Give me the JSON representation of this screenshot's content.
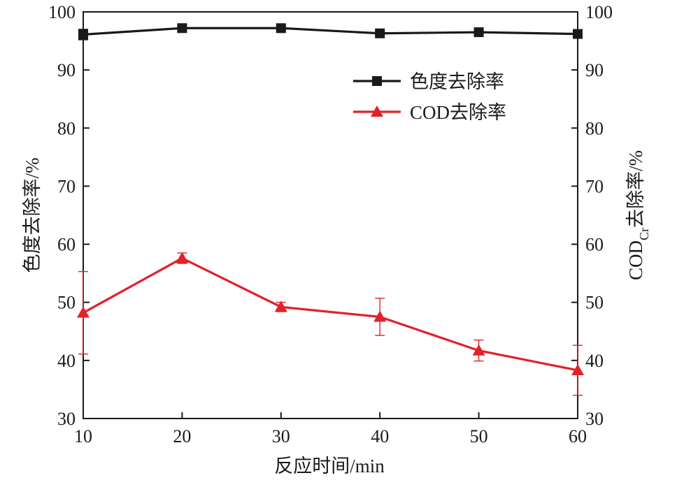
{
  "chart_data": {
    "type": "line",
    "x": [
      10,
      20,
      30,
      40,
      50,
      60
    ],
    "xlim": [
      10,
      60
    ],
    "ylim": [
      30,
      100
    ],
    "y2lim": [
      30,
      100
    ],
    "xticks": [
      "10",
      "20",
      "30",
      "40",
      "50",
      "60"
    ],
    "yticks": [
      "30",
      "40",
      "50",
      "60",
      "70",
      "80",
      "90",
      "100"
    ],
    "y2ticks": [
      "30",
      "40",
      "50",
      "60",
      "70",
      "80",
      "90",
      "100"
    ],
    "xlabel": "反应时间/min",
    "ylabel": "色度去除率/%",
    "y2label": {
      "prefix": "COD",
      "subscript": "Cr",
      "suffix": "去除率/%"
    },
    "legend_position": "top-right",
    "grid": false,
    "series": [
      {
        "name": "色度去除率",
        "axis": "left",
        "marker": "square",
        "color": "#1a1a1a",
        "values": [
          96.1,
          97.2,
          97.2,
          96.3,
          96.5,
          96.2
        ],
        "errors": [
          0.9,
          0.3,
          0.3,
          0.3,
          0.3,
          0.3
        ]
      },
      {
        "name": "COD去除率",
        "axis": "right",
        "marker": "triangle",
        "color": "#e2212a",
        "values": [
          48.2,
          57.6,
          49.2,
          47.5,
          41.7,
          38.3
        ],
        "errors": [
          7.1,
          0.9,
          0.8,
          3.2,
          1.8,
          4.3
        ]
      }
    ]
  }
}
